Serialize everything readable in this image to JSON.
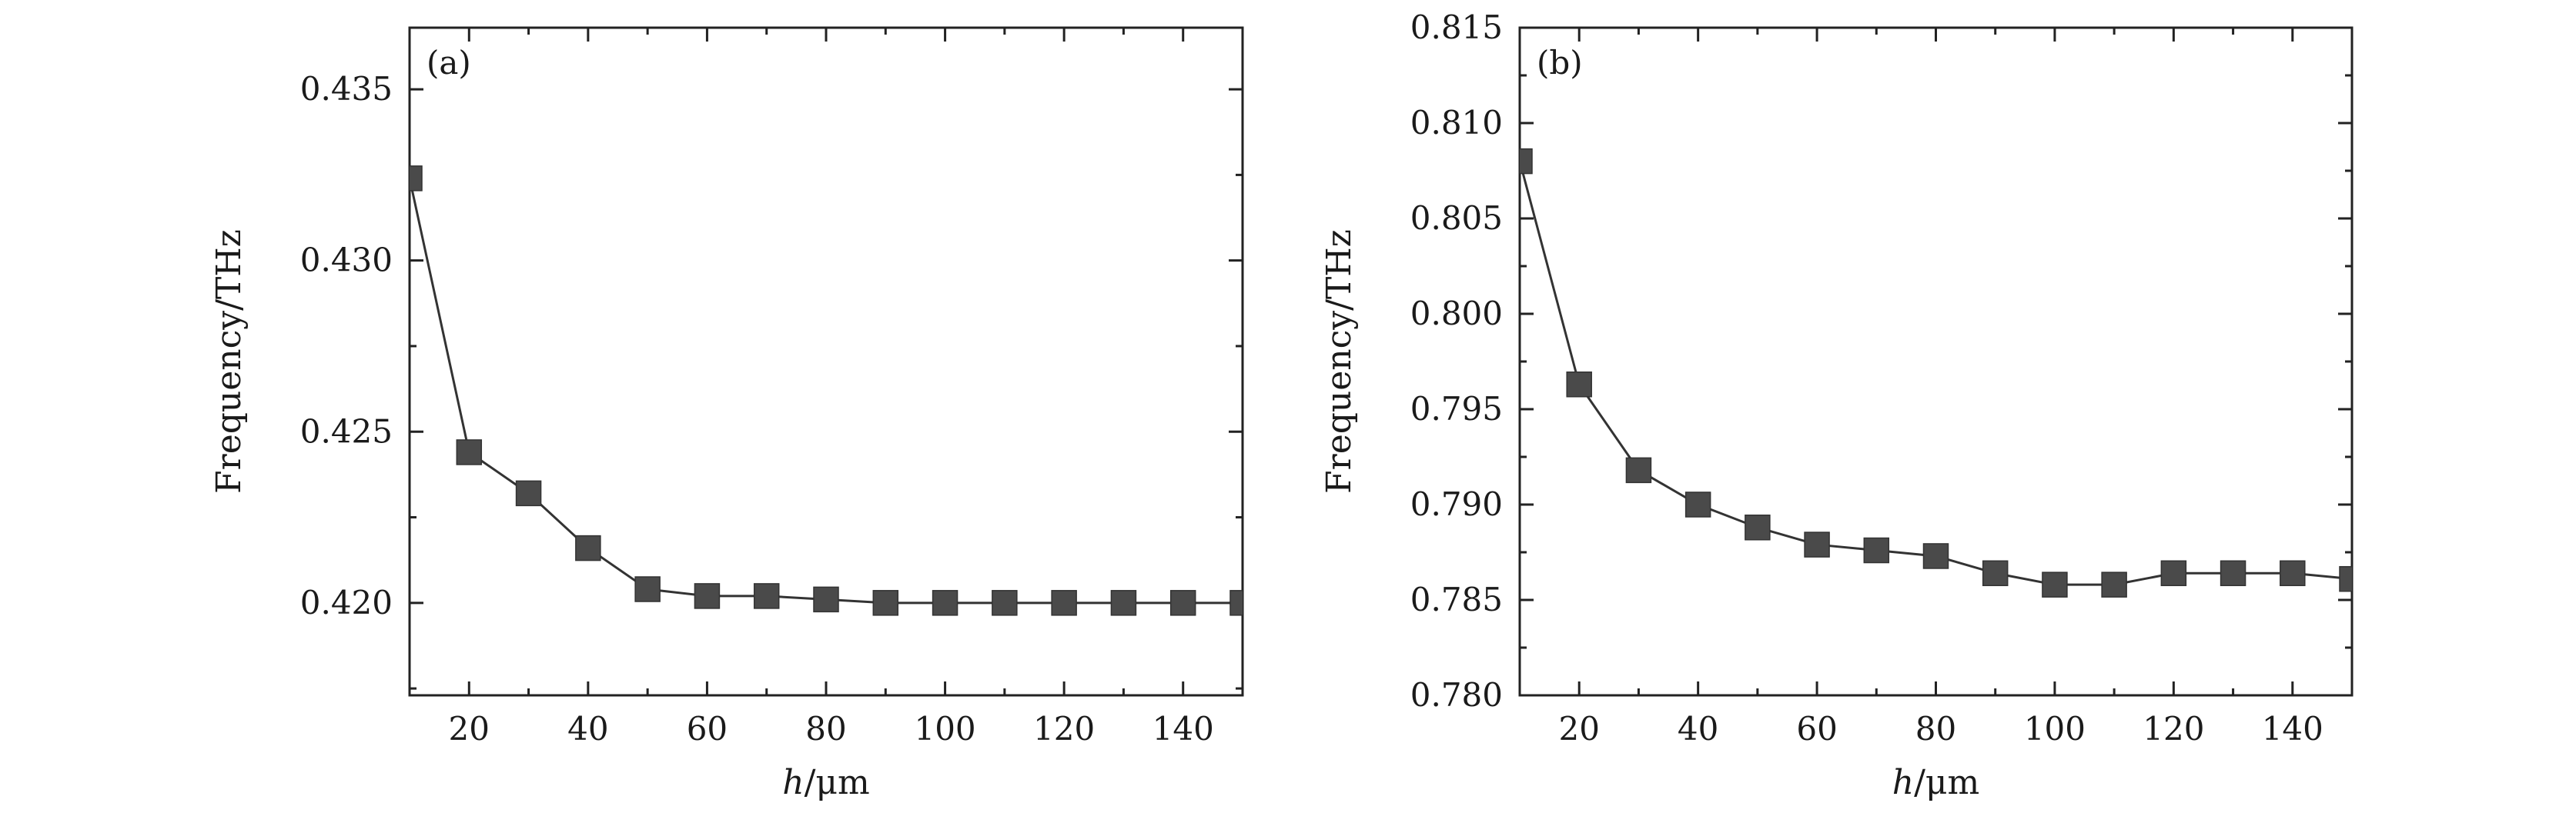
{
  "chart_data": [
    {
      "type": "line",
      "panel_label": "(a)",
      "xlabel_var": "h",
      "xlabel_unit": "/μm",
      "ylabel": "Frequency/THz",
      "xlim": [
        10,
        150
      ],
      "ylim": [
        0.4173,
        0.4368
      ],
      "xticks": [
        20,
        40,
        60,
        80,
        100,
        120,
        140
      ],
      "yticks": [
        0.42,
        0.425,
        0.43,
        0.435
      ],
      "ytick_labels": [
        "0.420",
        "0.425",
        "0.430",
        "0.435"
      ],
      "grid": false,
      "colors": {
        "marker": "#4a4a4a",
        "line": "#333333"
      },
      "series": [
        {
          "x": [
            10,
            20,
            30,
            40,
            50,
            60,
            70,
            80,
            90,
            100,
            110,
            120,
            130,
            140,
            150
          ],
          "y": [
            0.4324,
            0.4244,
            0.4232,
            0.4216,
            0.4204,
            0.4202,
            0.4202,
            0.4201,
            0.42,
            0.42,
            0.42,
            0.42,
            0.42,
            0.42,
            0.42
          ]
        }
      ]
    },
    {
      "type": "line",
      "panel_label": "(b)",
      "xlabel_var": "h",
      "xlabel_unit": "/μm",
      "ylabel": "Frequency/THz",
      "xlim": [
        10,
        150
      ],
      "ylim": [
        0.78,
        0.815
      ],
      "xticks": [
        20,
        40,
        60,
        80,
        100,
        120,
        140
      ],
      "yticks": [
        0.78,
        0.785,
        0.79,
        0.795,
        0.8,
        0.805,
        0.81,
        0.815
      ],
      "ytick_labels": [
        "0.780",
        "0.785",
        "0.790",
        "0.795",
        "0.800",
        "0.805",
        "0.810",
        "0.815"
      ],
      "grid": false,
      "colors": {
        "marker": "#4a4a4a",
        "line": "#333333"
      },
      "series": [
        {
          "x": [
            10,
            20,
            30,
            40,
            50,
            60,
            70,
            80,
            90,
            100,
            110,
            120,
            130,
            140,
            150
          ],
          "y": [
            0.808,
            0.7963,
            0.7918,
            0.79,
            0.7888,
            0.7879,
            0.7876,
            0.7873,
            0.7864,
            0.7858,
            0.7858,
            0.7864,
            0.7864,
            0.7864,
            0.7861
          ]
        }
      ]
    }
  ]
}
